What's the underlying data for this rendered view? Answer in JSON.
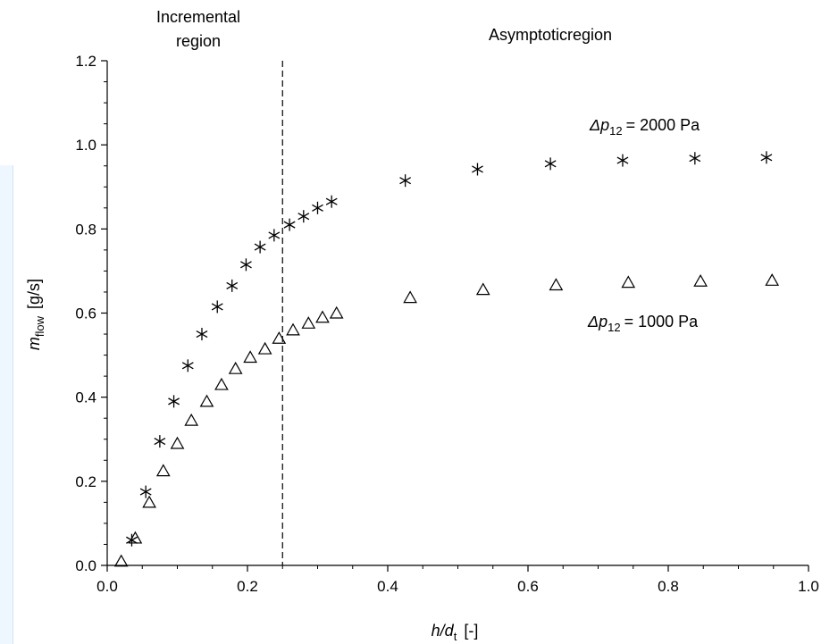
{
  "chart_data": {
    "type": "scatter",
    "xlabel": {
      "main": "h/d",
      "sub": "t",
      "unit": "[-]"
    },
    "ylabel": {
      "main": "m",
      "sub": "flow",
      "unit": "[g/s]"
    },
    "xlim": [
      0.0,
      1.0
    ],
    "ylim": [
      0.0,
      1.2
    ],
    "x_ticks": [
      "0.0",
      "0.2",
      "0.4",
      "0.6",
      "0.8",
      "1.0"
    ],
    "y_ticks": [
      "0.0",
      "0.2",
      "0.4",
      "0.6",
      "0.8",
      "1.0",
      "1.2"
    ],
    "x_tick_values": [
      0.0,
      0.2,
      0.4,
      0.6,
      0.8,
      1.0
    ],
    "y_tick_values": [
      0.0,
      0.2,
      0.4,
      0.6,
      0.8,
      1.0,
      1.2
    ],
    "grid": false,
    "divider": {
      "x": 0.25,
      "style": "dashed"
    },
    "regions": [
      {
        "lines": [
          "Incremental",
          "region"
        ]
      },
      {
        "lines": [
          "Asymptoticregion"
        ]
      }
    ],
    "series": [
      {
        "marker": "asterisk",
        "label_prefix": "Δp",
        "label_sub": "12",
        "label_value": "= 2000 Pa",
        "points": [
          {
            "x": 0.035,
            "y": 0.06
          },
          {
            "x": 0.055,
            "y": 0.175
          },
          {
            "x": 0.075,
            "y": 0.295
          },
          {
            "x": 0.095,
            "y": 0.39
          },
          {
            "x": 0.115,
            "y": 0.475
          },
          {
            "x": 0.135,
            "y": 0.55
          },
          {
            "x": 0.157,
            "y": 0.615
          },
          {
            "x": 0.178,
            "y": 0.665
          },
          {
            "x": 0.198,
            "y": 0.715
          },
          {
            "x": 0.218,
            "y": 0.757
          },
          {
            "x": 0.238,
            "y": 0.785
          },
          {
            "x": 0.26,
            "y": 0.81
          },
          {
            "x": 0.28,
            "y": 0.83
          },
          {
            "x": 0.3,
            "y": 0.85
          },
          {
            "x": 0.32,
            "y": 0.865
          },
          {
            "x": 0.425,
            "y": 0.915
          },
          {
            "x": 0.528,
            "y": 0.942
          },
          {
            "x": 0.632,
            "y": 0.955
          },
          {
            "x": 0.735,
            "y": 0.963
          },
          {
            "x": 0.838,
            "y": 0.968
          },
          {
            "x": 0.94,
            "y": 0.97
          }
        ]
      },
      {
        "marker": "triangle",
        "label_prefix": "Δp",
        "label_sub": "12",
        "label_value": "= 1000 Pa",
        "points": [
          {
            "x": 0.02,
            "y": 0.01
          },
          {
            "x": 0.04,
            "y": 0.065
          },
          {
            "x": 0.06,
            "y": 0.15
          },
          {
            "x": 0.08,
            "y": 0.225
          },
          {
            "x": 0.1,
            "y": 0.29
          },
          {
            "x": 0.12,
            "y": 0.345
          },
          {
            "x": 0.142,
            "y": 0.39
          },
          {
            "x": 0.163,
            "y": 0.43
          },
          {
            "x": 0.183,
            "y": 0.468
          },
          {
            "x": 0.204,
            "y": 0.495
          },
          {
            "x": 0.225,
            "y": 0.515
          },
          {
            "x": 0.245,
            "y": 0.54
          },
          {
            "x": 0.265,
            "y": 0.56
          },
          {
            "x": 0.287,
            "y": 0.576
          },
          {
            "x": 0.307,
            "y": 0.59
          },
          {
            "x": 0.327,
            "y": 0.6
          },
          {
            "x": 0.432,
            "y": 0.637
          },
          {
            "x": 0.536,
            "y": 0.656
          },
          {
            "x": 0.64,
            "y": 0.667
          },
          {
            "x": 0.743,
            "y": 0.673
          },
          {
            "x": 0.846,
            "y": 0.676
          },
          {
            "x": 0.948,
            "y": 0.678
          }
        ]
      }
    ]
  }
}
